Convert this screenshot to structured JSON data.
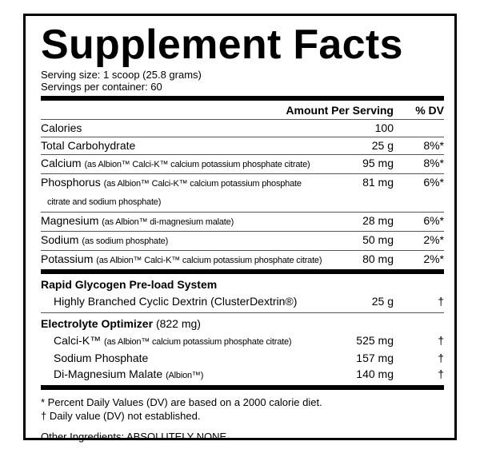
{
  "title": "Supplement Facts",
  "serving_size": "Serving size: 1 scoop (25.8 grams)",
  "servings_per_container": "Servings per container: 60",
  "header": {
    "amount": "Amount Per Serving",
    "dv": "% DV"
  },
  "nutrients": [
    {
      "name": "Calories",
      "note": "",
      "amount": "100",
      "dv": ""
    },
    {
      "name": "Total Carbohydrate",
      "note": "",
      "amount": "25 g",
      "dv": "8%*"
    },
    {
      "name": "Calcium",
      "note": "(as Albion™ Calci-K™ calcium potassium phosphate citrate)",
      "amount": "95 mg",
      "dv": "8%*"
    },
    {
      "name": "Phosphorus",
      "note": "(as Albion™ Calci-K™ calcium potassium phosphate",
      "note2": "citrate and sodium phosphate)",
      "amount": "81 mg",
      "dv": "6%*"
    },
    {
      "name": "Magnesium",
      "note": "(as Albion™ di-magnesium malate)",
      "amount": "28 mg",
      "dv": "6%*"
    },
    {
      "name": "Sodium",
      "note": "(as sodium phosphate)",
      "amount": "50 mg",
      "dv": "2%*"
    },
    {
      "name": "Potassium",
      "note": "(as Albion™ Calci-K™ calcium potassium phosphate citrate)",
      "amount": "80 mg",
      "dv": "2%*"
    }
  ],
  "blends": [
    {
      "title": "Rapid Glycogen Pre-load System",
      "title_note": "",
      "items": [
        {
          "name": "Highly Branched Cyclic Dextrin (ClusterDextrin®)",
          "note": "",
          "amount": "25 g",
          "dv": "†"
        }
      ]
    },
    {
      "title": "Electrolyte Optimizer",
      "title_note": "(822 mg)",
      "items": [
        {
          "name": "Calci-K™",
          "note": "(as Albion™ calcium potassium phosphate citrate)",
          "amount": "525 mg",
          "dv": "†"
        },
        {
          "name": "Sodium Phosphate",
          "note": "",
          "amount": "157 mg",
          "dv": "†"
        },
        {
          "name": "Di-Magnesium Malate",
          "note": "(Albion™)",
          "amount": "140 mg",
          "dv": "†"
        }
      ]
    }
  ],
  "footnotes": [
    "* Percent Daily Values (DV) are based on a 2000 calorie diet.",
    "† Daily value (DV) not established."
  ],
  "other_ingredients": "Other Ingredients: ABSOLUTELY NONE."
}
